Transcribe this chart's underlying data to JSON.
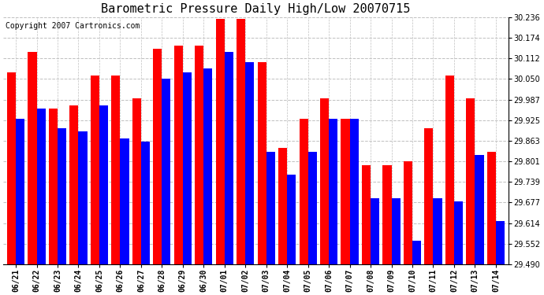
{
  "title": "Barometric Pressure Daily High/Low 20070715",
  "copyright": "Copyright 2007 Cartronics.com",
  "dates": [
    "06/21",
    "06/22",
    "06/23",
    "06/24",
    "06/25",
    "06/26",
    "06/27",
    "06/28",
    "06/29",
    "06/30",
    "07/01",
    "07/02",
    "07/03",
    "07/04",
    "07/05",
    "07/06",
    "07/07",
    "07/08",
    "07/09",
    "07/10",
    "07/11",
    "07/12",
    "07/13",
    "07/14"
  ],
  "high_values": [
    30.07,
    30.13,
    29.96,
    29.97,
    30.06,
    30.06,
    29.99,
    30.14,
    30.15,
    30.15,
    30.23,
    30.23,
    30.1,
    29.84,
    29.93,
    29.99,
    29.93,
    29.79,
    29.79,
    29.8,
    29.9,
    30.06,
    29.99,
    29.83
  ],
  "low_values": [
    29.93,
    29.96,
    29.9,
    29.89,
    29.97,
    29.87,
    29.86,
    30.05,
    30.07,
    30.08,
    30.13,
    30.1,
    29.83,
    29.76,
    29.83,
    29.93,
    29.93,
    29.69,
    29.69,
    29.56,
    29.69,
    29.68,
    29.82,
    29.62
  ],
  "high_color": "#ff0000",
  "low_color": "#0000ff",
  "bg_color": "#ffffff",
  "plot_bg": "#ffffff",
  "grid_color": "#c0c0c0",
  "ymin": 29.49,
  "ymax": 30.236,
  "yticks": [
    29.49,
    29.552,
    29.614,
    29.677,
    29.739,
    29.801,
    29.863,
    29.925,
    29.987,
    30.05,
    30.112,
    30.174,
    30.236
  ],
  "bar_width": 0.42,
  "title_fontsize": 11,
  "tick_fontsize": 7,
  "copyright_fontsize": 7
}
